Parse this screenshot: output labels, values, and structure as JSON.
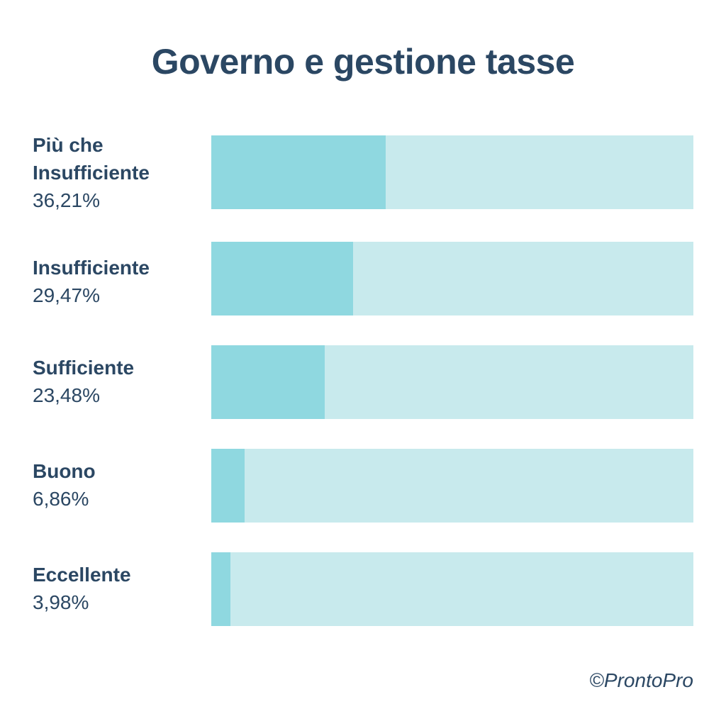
{
  "chart_data": {
    "type": "bar",
    "orientation": "horizontal",
    "title": "Governo e gestione tasse",
    "categories": [
      "Più che Insufficiente",
      "Insufficiente",
      "Sufficiente",
      "Buono",
      "Eccellente"
    ],
    "values": [
      36.21,
      29.47,
      23.48,
      6.86,
      3.98
    ],
    "value_labels": [
      "36,21%",
      "29,47%",
      "23,48%",
      "6,86%",
      "3,98%"
    ],
    "xlim": [
      0,
      100
    ],
    "unit": "%",
    "grid": false,
    "legend": "none",
    "colors": {
      "bar_fill": "#8fd8e0",
      "bar_track": "#c8eaed",
      "text": "#2b4763"
    }
  },
  "footer": {
    "copyright": "©ProntoPro"
  }
}
